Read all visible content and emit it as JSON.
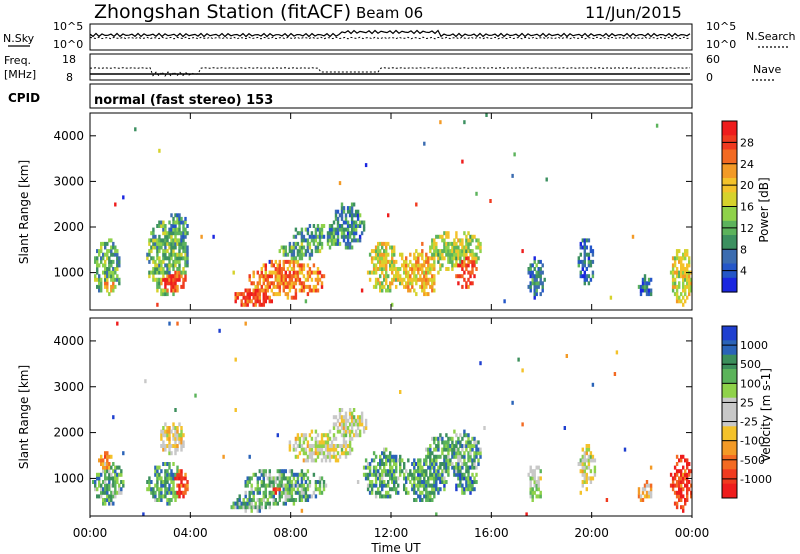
{
  "header": {
    "title": "Zhongshan Station (fitACF)",
    "beam": "Beam 06",
    "date": "11/Jun/2015"
  },
  "top_panels": {
    "nsky_label": "N.Sky",
    "nsky_top_tick": "10^5",
    "nsky_bottom_tick": "10^0",
    "nsearch_label": "N.Search",
    "freq_label_1": "Freq.",
    "freq_label_2": "[MHz]",
    "freq_top_tick": "18",
    "freq_bottom_tick": "8",
    "nave_label": "Nave",
    "nave_top_tick": "60",
    "nave_bottom_tick": "0",
    "cpid_label": "CPID",
    "cpid_text": "normal (fast stereo) 153"
  },
  "chart_data": [
    {
      "type": "heatmap",
      "quantity": "power",
      "ylabel": "Slant Range [km]",
      "ylim": [
        180,
        4500
      ],
      "yticks": [
        "1000",
        "2000",
        "3000",
        "4000"
      ],
      "xlim_hours": [
        0,
        24
      ],
      "colorbar": {
        "label": "Power [dB]",
        "ticks": [
          "28",
          "24",
          "20",
          "16",
          "12",
          "8",
          "4"
        ],
        "colors": [
          "#ee1c1c",
          "#f03a1f",
          "#f36a22",
          "#f39a26",
          "#f4c22a",
          "#d6d22c",
          "#8fd24a",
          "#5cb35c",
          "#3c9060",
          "#3b6cb0",
          "#2456c8",
          "#1a26e0"
        ]
      },
      "blobs": [
        {
          "t": 0.1,
          "t2": 1.2,
          "r": 420,
          "r2": 1700,
          "lvl": 0.35
        },
        {
          "t": 0.3,
          "t2": 1.0,
          "r": 500,
          "r2": 950,
          "lvl": 0.7
        },
        {
          "t": 2.2,
          "t2": 3.9,
          "r": 450,
          "r2": 2200,
          "lvl": 0.4
        },
        {
          "t": 2.6,
          "t2": 3.8,
          "r": 500,
          "r2": 1150,
          "lvl": 0.85
        },
        {
          "t": 3.0,
          "t2": 3.9,
          "r": 1500,
          "r2": 2300,
          "lvl": 0.3
        },
        {
          "t": 5.6,
          "t2": 7.3,
          "r": 220,
          "r2": 600,
          "lvl": 0.9
        },
        {
          "t": 6.3,
          "t2": 9.4,
          "r": 400,
          "r2": 1250,
          "lvl": 0.75
        },
        {
          "t": 7.5,
          "t2": 9.3,
          "r": 1250,
          "r2": 1650,
          "lvl": 0.35
        },
        {
          "t": 8.0,
          "t2": 10.4,
          "r": 1500,
          "r2": 2050,
          "lvl": 0.3
        },
        {
          "t": 9.6,
          "t2": 10.9,
          "r": 1500,
          "r2": 2500,
          "lvl": 0.25
        },
        {
          "t": 11.0,
          "t2": 12.5,
          "r": 500,
          "r2": 1650,
          "lvl": 0.55
        },
        {
          "t": 12.3,
          "t2": 14.0,
          "r": 450,
          "r2": 1450,
          "lvl": 0.65
        },
        {
          "t": 13.4,
          "t2": 15.6,
          "r": 1000,
          "r2": 1900,
          "lvl": 0.5
        },
        {
          "t": 14.5,
          "t2": 15.4,
          "r": 600,
          "r2": 1500,
          "lvl": 0.85
        },
        {
          "t": 17.4,
          "t2": 18.1,
          "r": 400,
          "r2": 1300,
          "lvl": 0.25
        },
        {
          "t": 19.4,
          "t2": 20.1,
          "r": 700,
          "r2": 1750,
          "lvl": 0.2
        },
        {
          "t": 21.8,
          "t2": 22.4,
          "r": 400,
          "r2": 900,
          "lvl": 0.2
        },
        {
          "t": 23.1,
          "t2": 24.0,
          "r": 250,
          "r2": 1550,
          "lvl": 0.55
        }
      ]
    },
    {
      "type": "heatmap",
      "quantity": "velocity",
      "ylabel": "Slant Range [km]",
      "ylim": [
        180,
        4500
      ],
      "yticks": [
        "1000",
        "2000",
        "3000",
        "4000"
      ],
      "xlim_hours": [
        0,
        24
      ],
      "xticks": [
        "00:00",
        "04:00",
        "08:00",
        "12:00",
        "16:00",
        "20:00",
        "00:00"
      ],
      "xlabel": "Time UT",
      "colorbar": {
        "label": "Velocity [m s-1]",
        "ticks": [
          "1000",
          "500",
          "100",
          "25",
          "-25",
          "-100",
          "-500",
          "-1000"
        ],
        "colors": [
          "#1f3fcf",
          "#2a63b8",
          "#3c8f5c",
          "#5bb35a",
          "#8fd24a",
          "#c8c8c8",
          "#c8c8c8",
          "#f4c22a",
          "#f39a26",
          "#f36a22",
          "#f03a1f",
          "#ee1c1c"
        ]
      },
      "blobs": [
        {
          "t": 0.1,
          "t2": 1.3,
          "r": 380,
          "r2": 1400,
          "lvl": 0.7
        },
        {
          "t": 0.2,
          "t2": 0.9,
          "r": 1000,
          "r2": 1600,
          "lvl": 0.3
        },
        {
          "t": 2.2,
          "t2": 3.9,
          "r": 400,
          "r2": 1300,
          "lvl": 0.75
        },
        {
          "t": 3.0,
          "t2": 3.9,
          "r": 500,
          "r2": 1200,
          "lvl": 0.1
        },
        {
          "t": 2.7,
          "t2": 3.8,
          "r": 1500,
          "r2": 2200,
          "lvl": 0.45
        },
        {
          "t": 5.5,
          "t2": 7.2,
          "r": 220,
          "r2": 600,
          "lvl": 0.7
        },
        {
          "t": 6.0,
          "t2": 9.4,
          "r": 400,
          "r2": 1200,
          "lvl": 0.72
        },
        {
          "t": 6.5,
          "t2": 8.5,
          "r": 500,
          "r2": 1000,
          "lvl": 0.1
        },
        {
          "t": 7.8,
          "t2": 10.5,
          "r": 1300,
          "r2": 2000,
          "lvl": 0.5
        },
        {
          "t": 9.6,
          "t2": 11.0,
          "r": 1800,
          "r2": 2500,
          "lvl": 0.5
        },
        {
          "t": 10.8,
          "t2": 12.6,
          "r": 500,
          "r2": 1600,
          "lvl": 0.72
        },
        {
          "t": 12.3,
          "t2": 14.2,
          "r": 450,
          "r2": 1500,
          "lvl": 0.75
        },
        {
          "t": 13.3,
          "t2": 15.6,
          "r": 1000,
          "r2": 2000,
          "lvl": 0.72
        },
        {
          "t": 14.5,
          "t2": 15.4,
          "r": 600,
          "r2": 1400,
          "lvl": 0.78
        },
        {
          "t": 17.4,
          "t2": 18.0,
          "r": 400,
          "r2": 1300,
          "lvl": 0.55
        },
        {
          "t": 19.4,
          "t2": 20.1,
          "r": 700,
          "r2": 1700,
          "lvl": 0.5
        },
        {
          "t": 21.8,
          "t2": 22.4,
          "r": 400,
          "r2": 900,
          "lvl": 0.35
        },
        {
          "t": 23.1,
          "t2": 24.0,
          "r": 250,
          "r2": 1500,
          "lvl": 0.1
        }
      ]
    }
  ]
}
